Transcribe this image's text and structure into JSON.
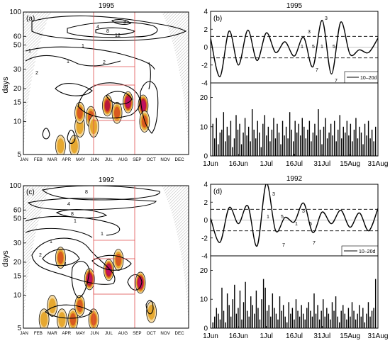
{
  "chart_data": [
    {
      "panel": "(a)",
      "title": "1995",
      "type": "heatmap",
      "ylabel": "days",
      "x_ticks": [
        "JAN",
        "FEB",
        "MAR",
        "APR",
        "MAY",
        "JUN",
        "JUL",
        "AUG",
        "SEP",
        "OCT",
        "NOV",
        "DEC"
      ],
      "y_ticks": [
        5,
        10,
        15,
        20,
        30,
        50,
        60,
        100
      ],
      "yscale": "log",
      "ylim": [
        5,
        100
      ],
      "highlight_months": [
        "JUN",
        "SEP"
      ],
      "contour_labels": [
        "1",
        "2",
        "4",
        "8",
        "12",
        "3"
      ],
      "hotspots": [
        {
          "month": 3.2,
          "period": 6,
          "level": 2
        },
        {
          "month": 4.2,
          "period": 6,
          "level": 2
        },
        {
          "month": 4.6,
          "period": 9,
          "level": 2
        },
        {
          "month": 4.6,
          "period": 12,
          "level": 3
        },
        {
          "month": 5.4,
          "period": 11,
          "level": 3
        },
        {
          "month": 5.6,
          "period": 9,
          "level": 2
        },
        {
          "month": 6.6,
          "period": 14,
          "level": 4
        },
        {
          "month": 7.3,
          "period": 12,
          "level": 3
        },
        {
          "month": 8.1,
          "period": 15,
          "level": 5
        },
        {
          "month": 9.2,
          "period": 14,
          "level": 5
        },
        {
          "month": 9.3,
          "period": 10,
          "level": 3
        }
      ]
    },
    {
      "panel": "(b)",
      "title": "1995",
      "type": "line",
      "legend": "10–20d",
      "x_ticks": [
        "1Jun",
        "16Jun",
        "1Jul",
        "16Jul",
        "31Jul",
        "15Aug",
        "31Aug"
      ],
      "y_ticks": [
        -4,
        -2,
        0,
        2,
        4
      ],
      "ylim": [
        -4,
        4
      ],
      "threshold": 1.2,
      "phase_labels": [
        "1",
        "3",
        "5",
        "7"
      ],
      "x": [
        0,
        5,
        10,
        15,
        20,
        25,
        30,
        35,
        40,
        45,
        50,
        55,
        60,
        65,
        70,
        75,
        80,
        85,
        90
      ],
      "values": [
        1.0,
        -3.3,
        1.8,
        -2.0,
        1.9,
        -1.5,
        1.6,
        -0.6,
        0.6,
        -1.0,
        1.1,
        -2.2,
        3.0,
        -3.0,
        2.8,
        -0.8,
        -0.3,
        -0.6,
        1.0
      ]
    },
    {
      "panel": "(b)",
      "type": "bar",
      "y_ticks": [
        0,
        10,
        20
      ],
      "ylim": [
        0,
        25
      ],
      "values": [
        11,
        6,
        13,
        4,
        8,
        9,
        15,
        5,
        10,
        7,
        12,
        3,
        6,
        14,
        9,
        11,
        4,
        8,
        13,
        7,
        10,
        5,
        16,
        9,
        6,
        12,
        8,
        3,
        11,
        14,
        7,
        10,
        5,
        9,
        13,
        6,
        11,
        8,
        4,
        12,
        7,
        10,
        6,
        15,
        9,
        5,
        12,
        8,
        11,
        7,
        13,
        10,
        6,
        9,
        12,
        5,
        8,
        11,
        7,
        16,
        9,
        4,
        10,
        13,
        6,
        8,
        11,
        7,
        12,
        5,
        9,
        14,
        6,
        10,
        8,
        12,
        7,
        11,
        5,
        9,
        13,
        6,
        10,
        8,
        4,
        11,
        7,
        12,
        6,
        9,
        5,
        10
      ]
    },
    {
      "panel": "(c)",
      "title": "1992",
      "type": "heatmap",
      "ylabel": "days",
      "x_ticks": [
        "JAN",
        "FEB",
        "MAR",
        "APR",
        "MAY",
        "JUN",
        "JUL",
        "AUG",
        "SEP",
        "OCT",
        "NOV",
        "DEC"
      ],
      "y_ticks": [
        5,
        10,
        15,
        20,
        30,
        50,
        60,
        100
      ],
      "yscale": "log",
      "ylim": [
        5,
        100
      ],
      "highlight_months": [
        "JUN",
        "SEP"
      ],
      "contour_labels": [
        "1",
        "2",
        "4",
        "8"
      ],
      "hotspots": [
        {
          "month": 2.0,
          "period": 6,
          "level": 2
        },
        {
          "month": 2.6,
          "period": 8,
          "level": 2
        },
        {
          "month": 3.2,
          "period": 22,
          "level": 3
        },
        {
          "month": 3.3,
          "period": 6,
          "level": 2
        },
        {
          "month": 4.1,
          "period": 6,
          "level": 3
        },
        {
          "month": 4.6,
          "period": 8,
          "level": 3
        },
        {
          "month": 5.3,
          "period": 14,
          "level": 5
        },
        {
          "month": 5.6,
          "period": 6,
          "level": 3
        },
        {
          "month": 6.7,
          "period": 17,
          "level": 5
        },
        {
          "month": 7.4,
          "period": 21,
          "level": 3
        },
        {
          "month": 9.0,
          "period": 13,
          "level": 5
        },
        {
          "month": 9.8,
          "period": 7,
          "level": 2
        }
      ]
    },
    {
      "panel": "(d)",
      "title": "1992",
      "type": "line",
      "legend": "10–20d",
      "x_ticks": [
        "1Jun",
        "16Jun",
        "1Jul",
        "16Jul",
        "31Jul",
        "15Aug",
        "31Aug"
      ],
      "y_ticks": [
        -4,
        -2,
        0,
        2,
        4
      ],
      "ylim": [
        -4,
        4
      ],
      "threshold": 1.2,
      "phase_labels": [
        "1",
        "3",
        "5",
        "7"
      ],
      "x": [
        0,
        5,
        10,
        15,
        20,
        25,
        30,
        35,
        40,
        45,
        50,
        55,
        60,
        65,
        70,
        75,
        80,
        85,
        90
      ],
      "values": [
        0.2,
        -2.5,
        1.4,
        -0.4,
        1.6,
        -2.9,
        4.1,
        -1.2,
        0.3,
        -0.2,
        1.9,
        -1.4,
        0.9,
        -0.4,
        1.1,
        -0.8,
        0.8,
        -1.2,
        1.3
      ]
    },
    {
      "panel": "(d)",
      "type": "bar",
      "y_ticks": [
        0,
        10,
        20
      ],
      "ylim": [
        0,
        25
      ],
      "values": [
        2,
        4,
        7,
        5,
        3,
        14,
        6,
        2,
        12,
        8,
        4,
        10,
        15,
        5,
        7,
        13,
        3,
        9,
        16,
        6,
        4,
        11,
        8,
        5,
        13,
        7,
        3,
        10,
        17,
        14,
        6,
        8,
        4,
        12,
        7,
        5,
        3,
        11,
        6,
        8,
        4,
        2,
        9,
        5,
        7,
        3,
        10,
        6,
        4,
        8,
        5,
        3,
        7,
        9,
        6,
        4,
        12,
        5,
        8,
        3,
        6,
        10,
        4,
        7,
        5,
        3,
        9,
        6,
        11,
        4,
        2,
        6,
        8,
        5,
        3,
        7,
        4,
        9,
        6,
        3,
        5,
        8,
        4,
        7,
        2,
        5,
        9,
        4,
        6,
        7,
        17
      ]
    }
  ]
}
